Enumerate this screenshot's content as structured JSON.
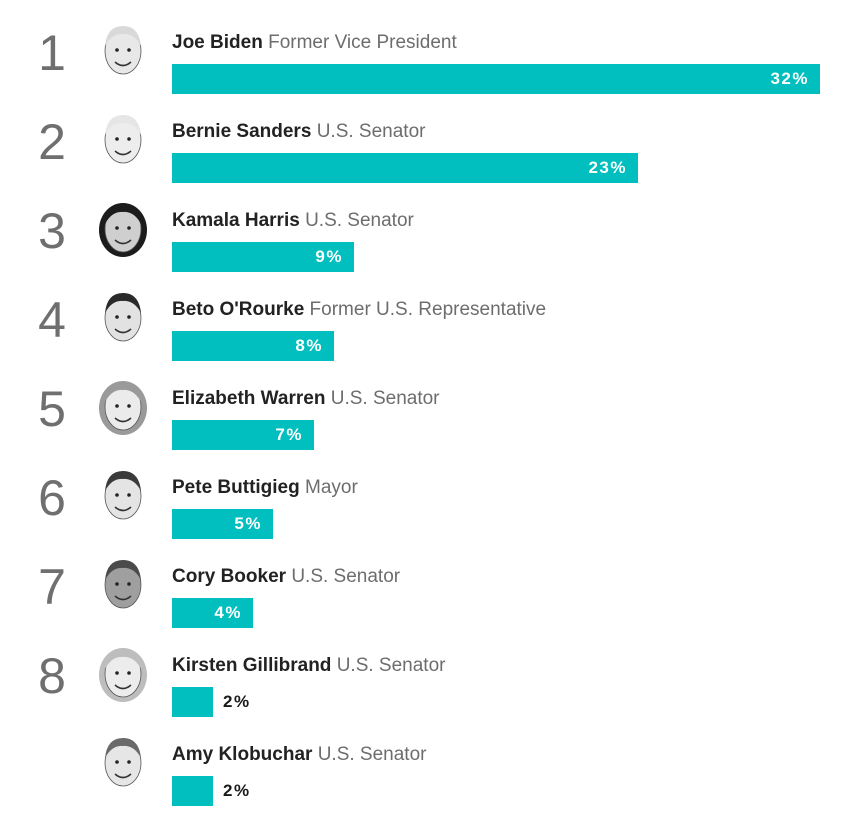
{
  "chart_data": {
    "type": "bar",
    "orientation": "horizontal",
    "colors": {
      "bar": "#00bfbe",
      "rank": "#6f6f6f",
      "name": "#222222",
      "title": "#6d6d6d"
    },
    "xlim": [
      0,
      32
    ],
    "rows": [
      {
        "rank": "1",
        "name": "Joe Biden",
        "title": "Former Vice President",
        "value": 32,
        "value_label": "32%",
        "icon": "joe-biden-avatar-icon"
      },
      {
        "rank": "2",
        "name": "Bernie Sanders",
        "title": "U.S. Senator",
        "value": 23,
        "value_label": "23%",
        "icon": "bernie-sanders-avatar-icon"
      },
      {
        "rank": "3",
        "name": "Kamala Harris",
        "title": "U.S. Senator",
        "value": 9,
        "value_label": "9%",
        "icon": "kamala-harris-avatar-icon"
      },
      {
        "rank": "4",
        "name": "Beto O'Rourke",
        "title": "Former U.S. Representative",
        "value": 8,
        "value_label": "8%",
        "icon": "beto-orourke-avatar-icon"
      },
      {
        "rank": "5",
        "name": "Elizabeth Warren",
        "title": "U.S. Senator",
        "value": 7,
        "value_label": "7%",
        "icon": "elizabeth-warren-avatar-icon"
      },
      {
        "rank": "6",
        "name": "Pete Buttigieg",
        "title": "Mayor",
        "value": 5,
        "value_label": "5%",
        "icon": "pete-buttigieg-avatar-icon"
      },
      {
        "rank": "7",
        "name": "Cory Booker",
        "title": "U.S. Senator",
        "value": 4,
        "value_label": "4%",
        "icon": "cory-booker-avatar-icon"
      },
      {
        "rank": "8",
        "name": "Kirsten Gillibrand",
        "title": "U.S. Senator",
        "value": 2,
        "value_label": "2%",
        "icon": "kirsten-gillibrand-avatar-icon"
      },
      {
        "rank": "",
        "name": "Amy Klobuchar",
        "title": "U.S. Senator",
        "value": 2,
        "value_label": "2%",
        "icon": "amy-klobuchar-avatar-icon"
      }
    ]
  }
}
